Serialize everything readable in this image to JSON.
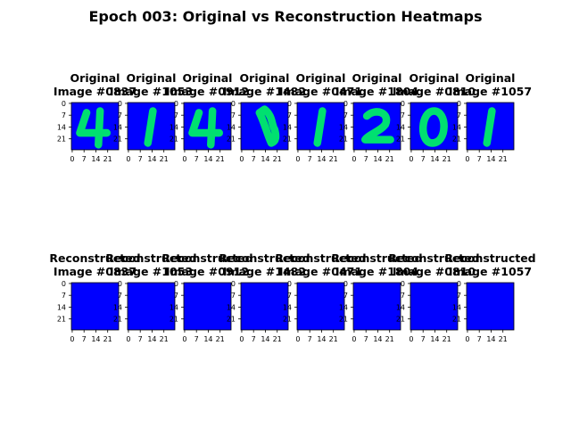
{
  "chart_data": {
    "type": "heatmap",
    "title": "Epoch 003: Original vs Reconstruction Heatmaps",
    "image_shape": [
      28,
      28
    ],
    "tick_labels": [
      "0",
      "7",
      "14",
      "21"
    ],
    "tick_values": [
      0,
      7,
      14,
      21
    ],
    "colors": {
      "background": "#0000ff",
      "ink": "#00e070"
    },
    "rows": [
      {
        "row_label": "Original",
        "panels": [
          {
            "line1": "Original",
            "line2": "Image #0837",
            "digit": "4"
          },
          {
            "line1": "Original",
            "line2": "Image #1053",
            "digit": "1"
          },
          {
            "line1": "Original",
            "line2": "Image #0912",
            "digit": "4"
          },
          {
            "line1": "Original",
            "line2": "Image #1482",
            "digit": "1"
          },
          {
            "line1": "Original",
            "line2": "Image #0471",
            "digit": "1"
          },
          {
            "line1": "Original",
            "line2": "Image #1804",
            "digit": "2"
          },
          {
            "line1": "Original",
            "line2": "Image #0810",
            "digit": "0"
          },
          {
            "line1": "Original",
            "line2": "Image #1057",
            "digit": "1"
          }
        ]
      },
      {
        "row_label": "Reconstructed",
        "panels": [
          {
            "line1": "Reconstructed",
            "line2": "Image #0837",
            "digit": ""
          },
          {
            "line1": "Reconstructed",
            "line2": "Image #1053",
            "digit": ""
          },
          {
            "line1": "Reconstructed",
            "line2": "Image #0912",
            "digit": ""
          },
          {
            "line1": "Reconstructed",
            "line2": "Image #1482",
            "digit": ""
          },
          {
            "line1": "Reconstructed",
            "line2": "Image #0471",
            "digit": ""
          },
          {
            "line1": "Reconstructed",
            "line2": "Image #1804",
            "digit": ""
          },
          {
            "line1": "Reconstructed",
            "line2": "Image #0810",
            "digit": ""
          },
          {
            "line1": "Reconstructed",
            "line2": "Image #1057",
            "digit": ""
          }
        ]
      }
    ]
  }
}
